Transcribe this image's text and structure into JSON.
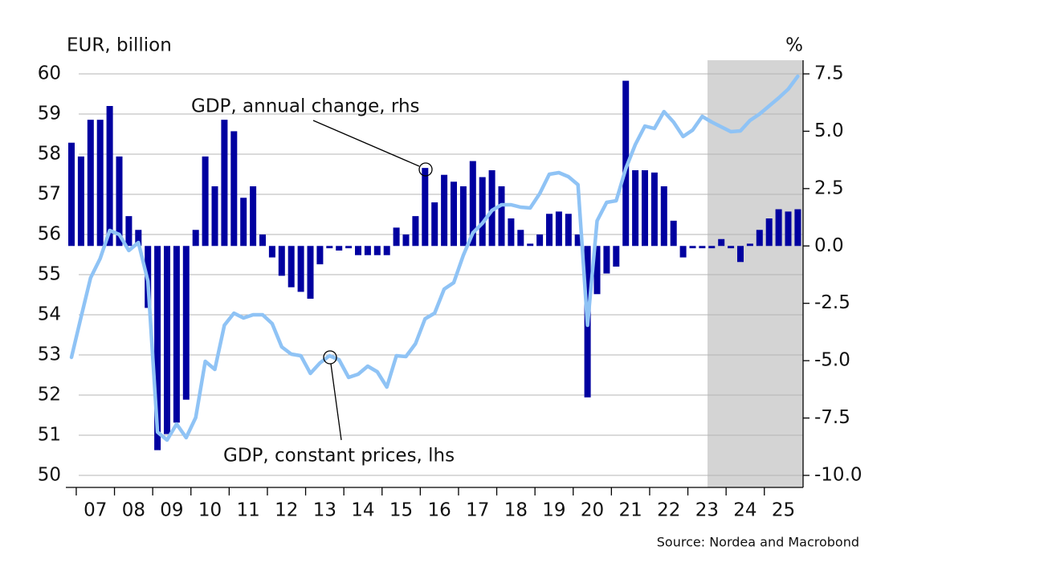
{
  "chart_data": {
    "type": "combo",
    "y_label": "EUR, billion",
    "y2_label": "%",
    "source": "Source: Nordea and Macrobond",
    "categories": [
      null,
      "07",
      null,
      null,
      null,
      "08",
      null,
      null,
      null,
      "09",
      null,
      null,
      null,
      "10",
      null,
      null,
      null,
      "11",
      null,
      null,
      null,
      "12",
      null,
      null,
      null,
      "13",
      null,
      null,
      null,
      "14",
      null,
      null,
      null,
      "15",
      null,
      null,
      null,
      "16",
      null,
      null,
      null,
      "17",
      null,
      null,
      null,
      "18",
      null,
      null,
      null,
      "19",
      null,
      null,
      null,
      "20",
      null,
      null,
      null,
      "21",
      null,
      null,
      null,
      "22",
      null,
      null,
      null,
      "23",
      null,
      null,
      null,
      "24",
      null,
      null,
      null,
      "25",
      null,
      null,
      null
    ],
    "ylim": [
      50,
      60
    ],
    "yticks": [
      50,
      51,
      52,
      53,
      54,
      55,
      56,
      57,
      58,
      59,
      60
    ],
    "y2lim": [
      -10,
      7.5
    ],
    "y2ticks": [
      {
        "value": -10,
        "label": "-10.0"
      },
      -7.5,
      {
        "value": -5,
        "label": "-5.0"
      },
      -2.5,
      {
        "value": 0,
        "label": "0.0"
      },
      2.5,
      {
        "value": 5,
        "label": "5.0"
      },
      7.5
    ],
    "grid": true,
    "series": [
      {
        "name": "GDP, annual change, rhs",
        "type": "bar",
        "axis": "y2",
        "color": "#0000a0",
        "values": [
          4.5,
          3.9,
          5.5,
          5.5,
          6.1,
          3.9,
          1.3,
          0.7,
          -2.7,
          -8.9,
          -8.2,
          -7.7,
          -6.7,
          0.7,
          3.9,
          2.6,
          5.5,
          5.0,
          2.1,
          2.6,
          0.5,
          -0.5,
          -1.3,
          -1.8,
          -2.0,
          -2.3,
          -0.8,
          -0.1,
          -0.2,
          -0.1,
          -0.4,
          -0.4,
          -0.4,
          -0.4,
          0.8,
          0.5,
          1.3,
          3.4,
          1.9,
          3.1,
          2.8,
          2.6,
          3.7,
          3.0,
          3.3,
          2.6,
          1.2,
          0.7,
          0.1,
          0.5,
          1.4,
          1.5,
          1.4,
          0.5,
          -6.6,
          -2.1,
          -1.2,
          -0.9,
          7.2,
          3.3,
          3.3,
          3.2,
          2.6,
          1.1,
          -0.5,
          -0.1,
          -0.1,
          -0.1,
          0.3,
          -0.1,
          -0.7,
          0.1,
          0.7,
          1.2,
          1.6,
          1.5,
          1.6
        ]
      },
      {
        "name": "GDP, constant prices, lhs",
        "type": "line",
        "axis": "y",
        "color": "#8fc3f5",
        "values": [
          52.94,
          53.94,
          54.92,
          55.4,
          56.1,
          56.0,
          55.6,
          55.8,
          54.84,
          51.08,
          50.88,
          51.28,
          50.94,
          51.44,
          52.84,
          52.64,
          53.74,
          54.04,
          53.92,
          54.0,
          54.0,
          53.78,
          53.2,
          53.02,
          52.98,
          52.54,
          52.8,
          52.98,
          52.88,
          52.44,
          52.52,
          52.72,
          52.58,
          52.2,
          52.98,
          52.96,
          53.28,
          53.9,
          54.04,
          54.64,
          54.8,
          55.48,
          56.04,
          56.28,
          56.6,
          56.74,
          56.74,
          56.68,
          56.66,
          57.02,
          57.5,
          57.54,
          57.44,
          57.24,
          53.74,
          56.34,
          56.8,
          56.84,
          57.64,
          58.24,
          58.7,
          58.64,
          59.06,
          58.8,
          58.44,
          58.6,
          58.94,
          58.8,
          58.68,
          58.56,
          58.58,
          58.84,
          59.0,
          59.2,
          59.4,
          59.62,
          59.94
        ]
      }
    ]
  }
}
